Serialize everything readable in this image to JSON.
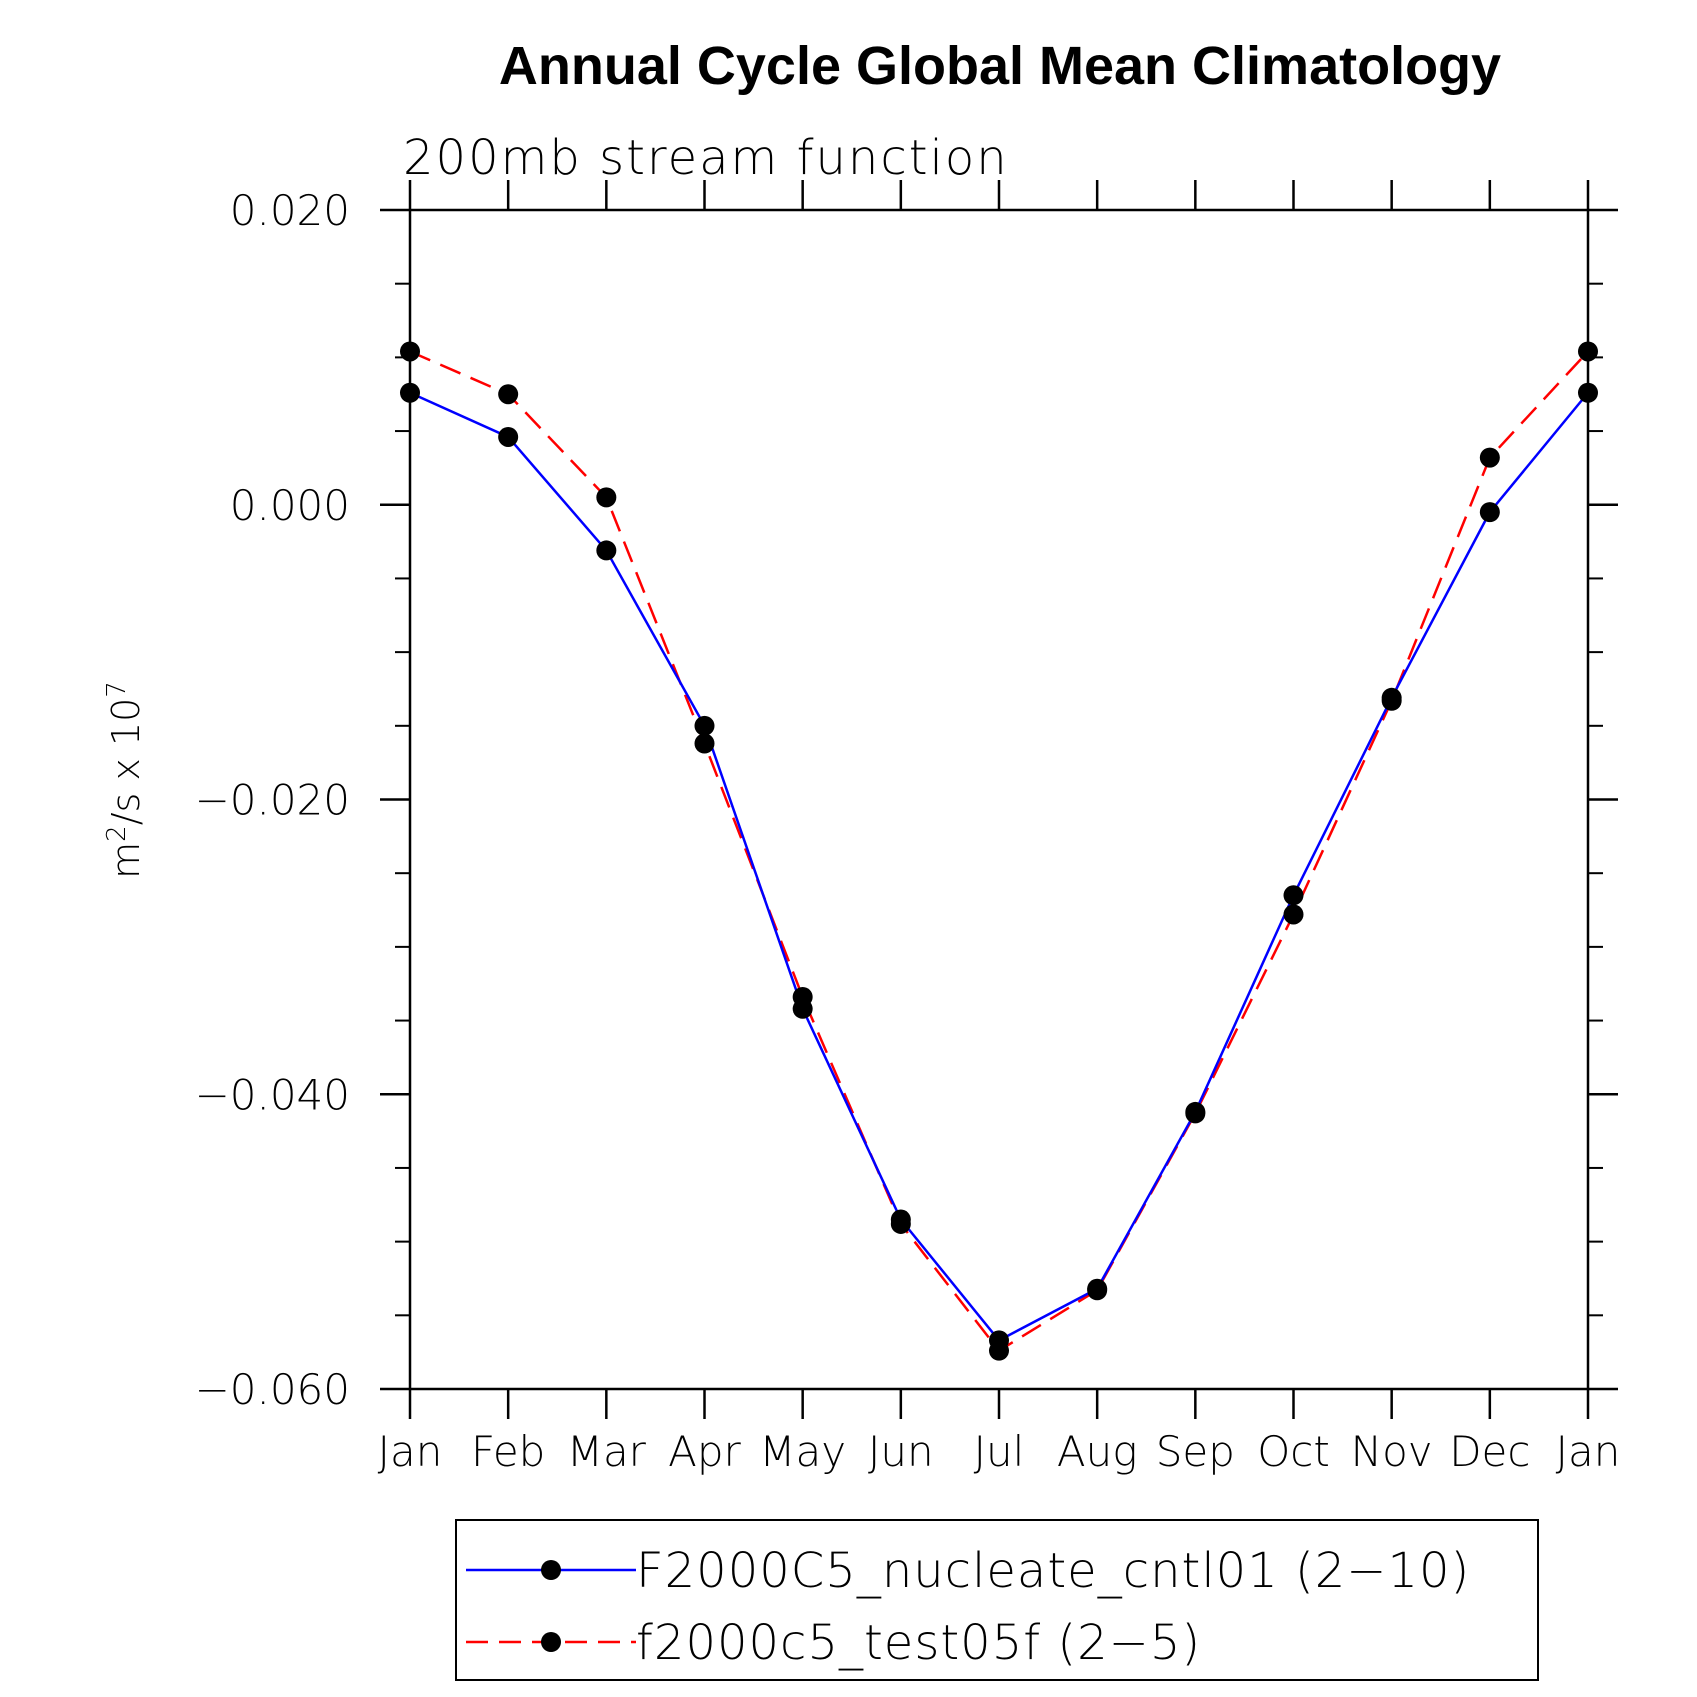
{
  "chart_data": {
    "type": "line",
    "title": "Annual Cycle Global Mean Climatology",
    "subtitle": "200mb stream function",
    "ylabel": {
      "base": "m",
      "sup1": "2",
      "mid": "/s x 10",
      "sup2": "7"
    },
    "xlabel": "",
    "categories": [
      "Jan",
      "Feb",
      "Mar",
      "Apr",
      "May",
      "Jun",
      "Jul",
      "Aug",
      "Sep",
      "Oct",
      "Nov",
      "Dec",
      "Jan"
    ],
    "ylim": [
      -0.06,
      0.02
    ],
    "yticks": [
      0.02,
      0.0,
      -0.02,
      -0.04,
      -0.06
    ],
    "ytick_labels": [
      "0.020",
      "0.000",
      "−0.020",
      "−0.040",
      "−0.060"
    ],
    "grid": false,
    "legend_position": "bottom",
    "series": [
      {
        "name": "F2000C5_nucleate_cntl01 (2−10)",
        "color": "#0000ff",
        "dash": "solid",
        "values": [
          0.0076,
          0.0046,
          -0.0031,
          -0.015,
          -0.0342,
          -0.0485,
          -0.0567,
          -0.0532,
          -0.0412,
          -0.0265,
          -0.0131,
          -0.0005,
          0.0076
        ]
      },
      {
        "name": "f2000c5_test05f (2−5)",
        "color": "#ff0000",
        "dash": "dashed",
        "values": [
          0.0104,
          0.0075,
          0.0005,
          -0.0162,
          -0.0334,
          -0.0488,
          -0.0574,
          -0.0533,
          -0.0413,
          -0.0278,
          -0.0133,
          0.0032,
          0.0104
        ]
      }
    ]
  }
}
